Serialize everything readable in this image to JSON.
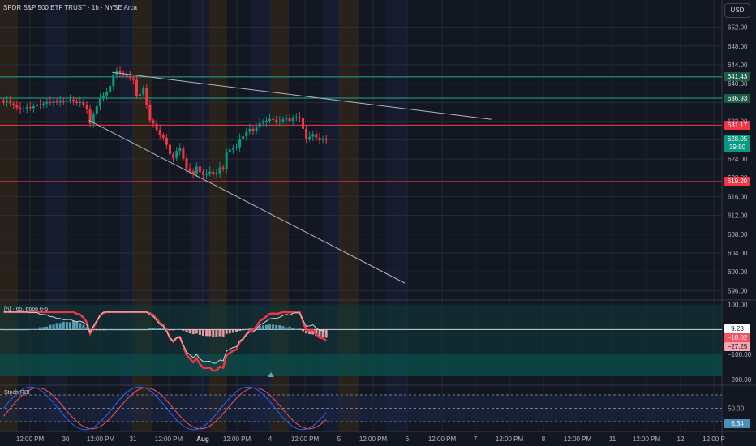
{
  "header": {
    "title": "SPDR S&P 500 ETF TRUST · 1h · NYSE Arca",
    "currency_button": "USD"
  },
  "price_axis": {
    "ticks": [
      "652.00",
      "648.00",
      "644.00",
      "640.00",
      "632.00",
      "624.00",
      "620.00",
      "616.00",
      "612.00",
      "608.00",
      "604.00",
      "600.00",
      "596.00"
    ]
  },
  "price_labels": [
    {
      "price": 641.43,
      "text": "641.43",
      "color": "#22ab94",
      "bg": "#1b5e46"
    },
    {
      "price": 636.93,
      "text": "636.93",
      "color": "#22ab94",
      "bg": "#1b5e46"
    },
    {
      "price": 631.17,
      "text": "631.17",
      "color": "#f23645",
      "bg": "#f23645"
    },
    {
      "price": 628.05,
      "text": "628.05",
      "sub": "39:50",
      "color": "#089981",
      "bg": "#089981"
    },
    {
      "price": 619.2,
      "text": "619.20",
      "color": "#f23645",
      "bg": "#f23645"
    }
  ],
  "macd_panel": {
    "label": "[Λ] · 65, 6666 6-6",
    "axis_ticks": [
      "100.00",
      "−100.00",
      "−200.00"
    ],
    "value_labels": [
      {
        "value": 9.23,
        "text": "9.23",
        "bg": "#ffffff",
        "fg": "#131722"
      },
      {
        "value": -18.02,
        "text": "−18.02",
        "bg": "#f7525f",
        "fg": "#ffffff"
      },
      {
        "value": -27.25,
        "text": "−27.25",
        "bg": "#f5a6ae",
        "fg": "#131722"
      }
    ]
  },
  "stoch_panel": {
    "label": "Stoch RSI",
    "axis_ticks": [
      "50.00"
    ],
    "value_label": "6.34"
  },
  "time_axis": {
    "labels": [
      "12:00 PM",
      "30",
      "12:00 PM",
      "31",
      "12:00 PM",
      "Aug",
      "12:00 PM",
      "4",
      "12:00 PM",
      "5",
      "12:00 PM",
      "6",
      "12:00 PM",
      "7",
      "12:00 PM",
      "8",
      "12:00 PM",
      "11",
      "12:00 PM",
      "12",
      "12:00 P"
    ]
  },
  "chart_data": {
    "type": "candlestick",
    "symbol": "SPDR S&P 500 ETF TRUST",
    "interval": "1h",
    "exchange": "NYSE Arca",
    "currency": "USD",
    "ylim": [
      594,
      654
    ],
    "close_series": [
      636.0,
      636.4,
      635.8,
      635.5,
      634.9,
      634.5,
      634.7,
      635.0,
      634.8,
      635.2,
      635.6,
      635.4,
      635.8,
      636.1,
      635.9,
      636.2,
      636.0,
      636.3,
      636.1,
      636.4,
      636.6,
      636.2,
      635.9,
      636.1,
      635.5,
      634.5,
      631.5,
      633.5,
      635.2,
      636.8,
      637.5,
      638.2,
      639.5,
      641.8,
      642.6,
      642.3,
      642.0,
      641.6,
      641.2,
      640.8,
      637.4,
      637.8,
      639.0,
      635.5,
      632.2,
      631.5,
      630.2,
      629.0,
      628.5,
      627.0,
      625.0,
      624.2,
      625.7,
      626.3,
      624.1,
      622.0,
      621.4,
      620.8,
      622.4,
      621.2,
      620.6,
      620.9,
      621.3,
      620.7,
      621.0,
      622.2,
      621.9,
      625.4,
      626.0,
      626.4,
      626.5,
      628.3,
      628.8,
      629.8,
      630.4,
      629.9,
      630.7,
      631.6,
      631.8,
      632.1,
      632.5,
      632.3,
      631.9,
      632.0,
      632.4,
      632.6,
      632.1,
      632.7,
      632.9,
      632.8,
      630.4,
      628.3,
      628.7,
      629.3,
      628.5,
      628.0,
      628.3,
      628.05
    ],
    "horizontal_levels": [
      {
        "price": 641.43,
        "color": "#22ab94"
      },
      {
        "price": 636.93,
        "color": "#22ab94"
      },
      {
        "price": 631.17,
        "color": "#f23645"
      },
      {
        "price": 619.2,
        "color": "#f23645"
      }
    ],
    "trend_lines": [
      {
        "from": {
          "bar": 33,
          "price": 642.4
        },
        "to": {
          "bar": 147,
          "price": 632.4
        }
      },
      {
        "from": {
          "bar": 26,
          "price": 632.2
        },
        "to": {
          "bar": 121,
          "price": 597.6
        }
      }
    ],
    "colors": {
      "up": "#089981",
      "down": "#f23645",
      "wick_up": "#089981",
      "wick_down": "#f23645"
    },
    "macd": {
      "values_shown": {
        "macd": 9.23,
        "signal": -18.02,
        "histogram": -27.25
      },
      "upper_band": 100,
      "lower_band": -100,
      "ylim": [
        -220,
        115
      ]
    },
    "stoch_rsi": {
      "value_shown": 6.34,
      "upper_band": 80,
      "lower_band": 20,
      "ylim": [
        0,
        100
      ]
    }
  }
}
